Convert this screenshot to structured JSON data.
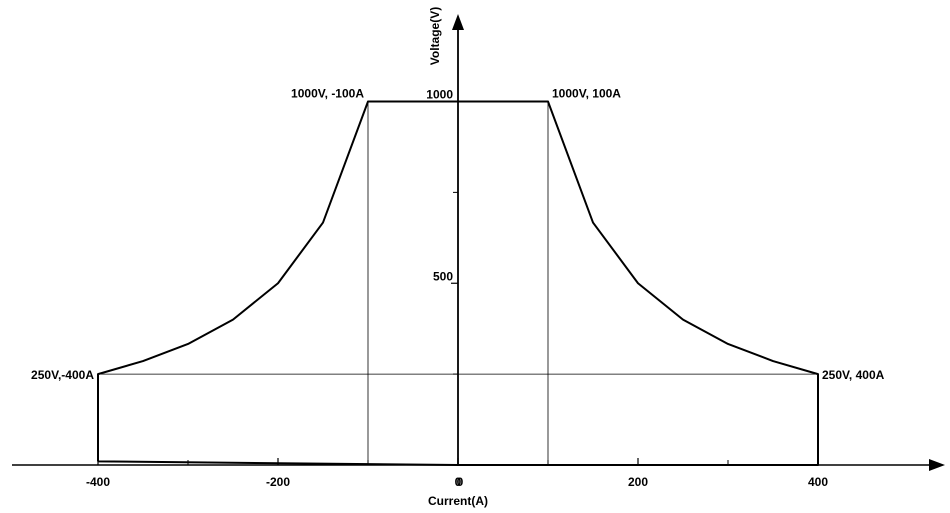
{
  "chart_data": {
    "type": "line",
    "title": "",
    "xlabel": "Current(A)",
    "ylabel": "Voltage(V)",
    "xlim": [
      -500,
      530
    ],
    "ylim": [
      0,
      1230
    ],
    "x_ticks": [
      -400,
      -200,
      0,
      200,
      400
    ],
    "x_minor_ticks": [
      -300,
      -100,
      100,
      300
    ],
    "y_ticks": [
      500,
      1000
    ],
    "y_minor_ticks": [
      250,
      750
    ],
    "grid": false,
    "legend": "none",
    "series": [
      {
        "values_x": [
          -400,
          -400,
          -350,
          -300,
          -250,
          -200,
          -150,
          -100,
          100,
          150,
          200,
          250,
          300,
          350,
          400,
          400,
          0,
          -400
        ],
        "values_y": [
          10,
          250,
          286,
          333,
          400,
          500,
          667,
          1000,
          1000,
          667,
          500,
          400,
          333,
          286,
          250,
          0,
          0,
          10
        ]
      }
    ],
    "reference_lines": [
      {
        "from": [
          -400,
          250
        ],
        "to": [
          400,
          250
        ]
      },
      {
        "from": [
          -100,
          0
        ],
        "to": [
          -100,
          1000
        ]
      },
      {
        "from": [
          100,
          0
        ],
        "to": [
          100,
          1000
        ]
      }
    ],
    "annotations": [
      {
        "text": "1000V, -100A",
        "x": -100,
        "y": 1000,
        "anchor": "left"
      },
      {
        "text": "1000V, 100A",
        "x": 100,
        "y": 1000,
        "anchor": "right"
      },
      {
        "text": "250V,-400A",
        "x": -400,
        "y": 250,
        "anchor": "left"
      },
      {
        "text": "250V, 400A",
        "x": 400,
        "y": 250,
        "anchor": "right"
      }
    ],
    "colors": {
      "line": "#000000",
      "reference": "#000000",
      "background": "#ffffff"
    }
  }
}
